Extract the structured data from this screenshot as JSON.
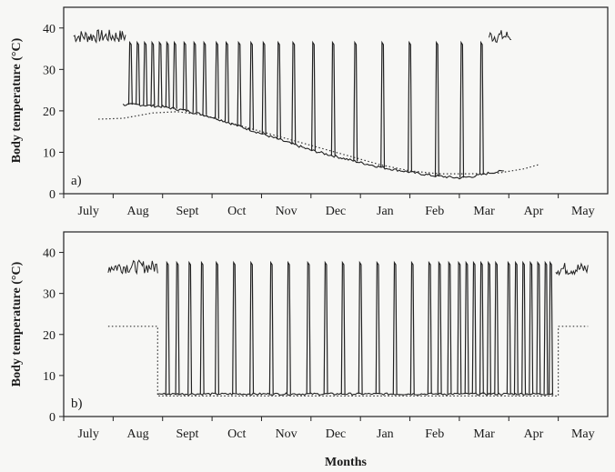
{
  "chart_data": [
    {
      "type": "line",
      "panel_label": "a)",
      "ylabel": "Body temperature (°C)",
      "xlabel": "",
      "ylim": [
        0,
        45
      ],
      "yticks": [
        0,
        10,
        20,
        30,
        40
      ],
      "xlim": [
        0,
        11
      ],
      "categories": [
        "July",
        "Aug",
        "Sept",
        "Oct",
        "Nov",
        "Dec",
        "Jan",
        "Feb",
        "Mar",
        "Apr",
        "May"
      ],
      "grid": false,
      "series": [
        {
          "style": "solid",
          "torpor_baseline": [
            [
              1.2,
              21.5
            ],
            [
              1.5,
              21.5
            ],
            [
              2.0,
              21.0
            ],
            [
              2.5,
              20.0
            ],
            [
              3.0,
              18.5
            ],
            [
              3.5,
              16.5
            ],
            [
              4.0,
              14.5
            ],
            [
              4.5,
              12.5
            ],
            [
              5.0,
              10.5
            ],
            [
              5.5,
              9.0
            ],
            [
              6.0,
              7.5
            ],
            [
              6.5,
              6.2
            ],
            [
              7.0,
              5.2
            ],
            [
              7.5,
              4.3
            ],
            [
              8.0,
              3.8
            ],
            [
              8.3,
              4.2
            ],
            [
              8.6,
              5.0
            ],
            [
              8.9,
              5.5
            ]
          ],
          "arousals": [
            1.35,
            1.5,
            1.65,
            1.8,
            1.95,
            2.1,
            2.25,
            2.45,
            2.65,
            2.85,
            3.1,
            3.3,
            3.55,
            3.8,
            4.05,
            4.35,
            4.65,
            5.05,
            5.45,
            5.9,
            6.45,
            7.0,
            7.55,
            8.05,
            8.45
          ],
          "arousal_peak": 36.5,
          "euthermic_periods": [
            [
              0.2,
              1.25,
              38.0
            ],
            [
              8.6,
              9.05,
              38.0
            ]
          ]
        },
        {
          "style": "dotted",
          "points": [
            [
              0.7,
              18.0
            ],
            [
              1.2,
              18.2
            ],
            [
              1.8,
              19.5
            ],
            [
              2.3,
              19.8
            ],
            [
              2.8,
              19.0
            ],
            [
              3.4,
              17.0
            ],
            [
              4.0,
              15.0
            ],
            [
              4.6,
              13.0
            ],
            [
              5.2,
              11.0
            ],
            [
              5.8,
              9.0
            ],
            [
              6.4,
              7.0
            ],
            [
              7.0,
              5.5
            ],
            [
              7.6,
              4.8
            ],
            [
              8.2,
              4.8
            ],
            [
              8.8,
              5.0
            ],
            [
              9.3,
              6.0
            ],
            [
              9.6,
              7.0
            ]
          ]
        }
      ]
    },
    {
      "type": "line",
      "panel_label": "b)",
      "ylabel": "Body temperature (°C)",
      "xlabel": "Months",
      "ylim": [
        0,
        45
      ],
      "yticks": [
        0,
        10,
        20,
        30,
        40
      ],
      "xlim": [
        0,
        11
      ],
      "categories": [
        "July",
        "Aug",
        "Sept",
        "Oct",
        "Nov",
        "Dec",
        "Jan",
        "Feb",
        "Mar",
        "Apr",
        "May"
      ],
      "grid": false,
      "series": [
        {
          "style": "solid",
          "torpor_level": 5.5,
          "torpor_span": [
            1.9,
            9.9
          ],
          "arousals": [
            2.1,
            2.3,
            2.55,
            2.8,
            3.1,
            3.45,
            3.8,
            4.2,
            4.55,
            4.95,
            5.3,
            5.65,
            6.0,
            6.35,
            6.7,
            7.05,
            7.4,
            7.6,
            7.8,
            8.0,
            8.15,
            8.3,
            8.45,
            8.6,
            8.75,
            9.0,
            9.15,
            9.3,
            9.45,
            9.6,
            9.75,
            9.85
          ],
          "arousal_peak": 37.5,
          "euthermic_periods": [
            [
              0.9,
              1.9,
              36.5
            ],
            [
              9.95,
              10.6,
              36.0
            ]
          ]
        },
        {
          "style": "dotted",
          "points": [
            [
              0.9,
              22.0
            ],
            [
              1.7,
              22.0
            ],
            [
              1.9,
              22.0
            ],
            [
              1.9,
              5.0
            ],
            [
              10.0,
              5.0
            ],
            [
              10.0,
              22.0
            ],
            [
              10.6,
              22.0
            ]
          ]
        }
      ]
    }
  ]
}
